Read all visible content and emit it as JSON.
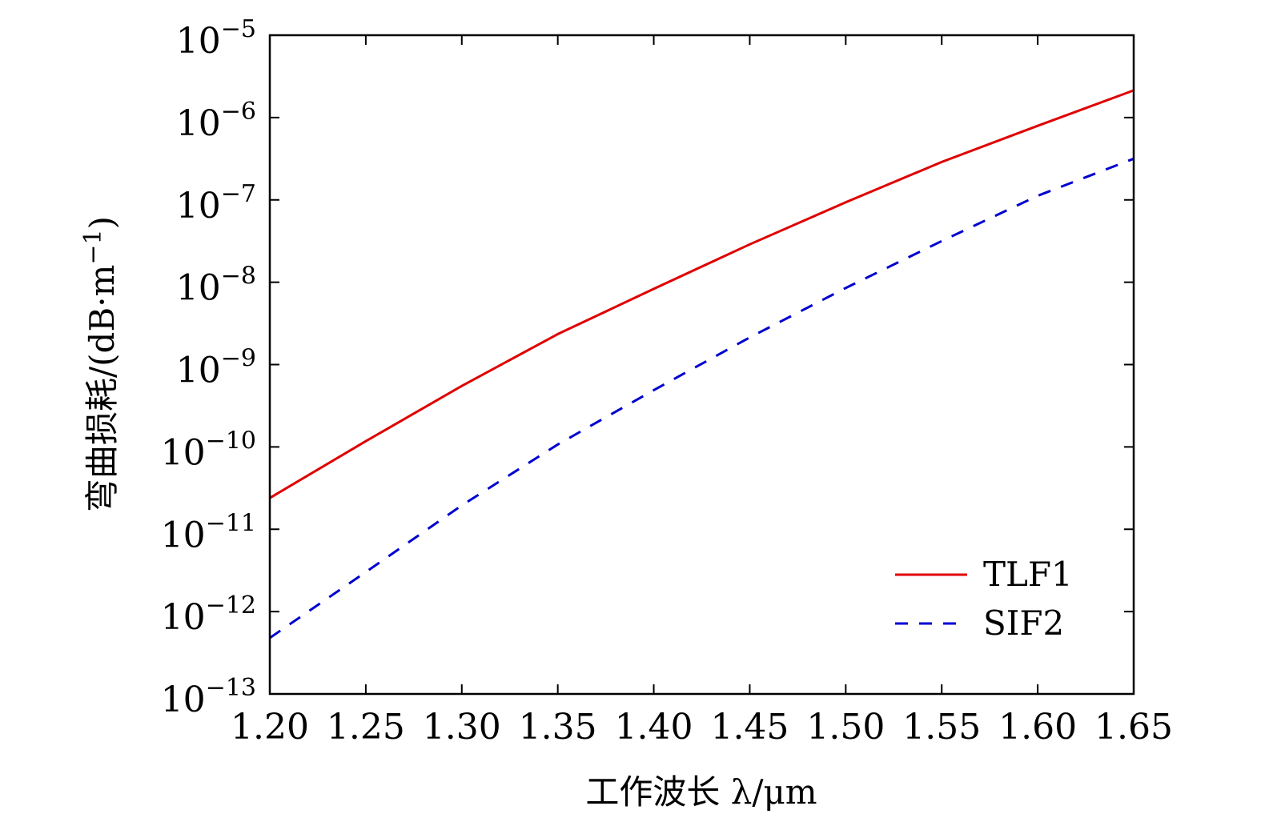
{
  "chart_data": {
    "type": "line",
    "title": "",
    "xlabel": "工作波长 λ/μm",
    "ylabel": "弯曲损耗/(dB·m⁻¹)",
    "xlim": [
      1.2,
      1.65
    ],
    "yscale": "log",
    "ylim": [
      1e-13,
      1e-05
    ],
    "grid": false,
    "legend_position": "bottom-right",
    "x_ticks": [
      {
        "value": 1.2,
        "label": "1.20"
      },
      {
        "value": 1.25,
        "label": "1.25"
      },
      {
        "value": 1.3,
        "label": "1.30"
      },
      {
        "value": 1.35,
        "label": "1.35"
      },
      {
        "value": 1.4,
        "label": "1.40"
      },
      {
        "value": 1.45,
        "label": "1.45"
      },
      {
        "value": 1.5,
        "label": "1.50"
      },
      {
        "value": 1.55,
        "label": "1.55"
      },
      {
        "value": 1.6,
        "label": "1.60"
      },
      {
        "value": 1.65,
        "label": "1.65"
      }
    ],
    "y_ticks": [
      {
        "exponent": -13,
        "base": "10",
        "exp_label": "−13"
      },
      {
        "exponent": -12,
        "base": "10",
        "exp_label": "−12"
      },
      {
        "exponent": -11,
        "base": "10",
        "exp_label": "−11"
      },
      {
        "exponent": -10,
        "base": "10",
        "exp_label": "−10"
      },
      {
        "exponent": -9,
        "base": "10",
        "exp_label": "−9"
      },
      {
        "exponent": -8,
        "base": "10",
        "exp_label": "−8"
      },
      {
        "exponent": -7,
        "base": "10",
        "exp_label": "−7"
      },
      {
        "exponent": -6,
        "base": "10",
        "exp_label": "−6"
      },
      {
        "exponent": -5,
        "base": "10",
        "exp_label": "−5"
      }
    ],
    "ylabel_parts": {
      "main": "弯曲损耗/(dB·m",
      "sup": "−1",
      "close": ")"
    },
    "x": [
      1.2,
      1.25,
      1.3,
      1.35,
      1.4,
      1.45,
      1.5,
      1.55,
      1.6,
      1.65
    ],
    "series": [
      {
        "name": "TLF1",
        "color": "#e00000",
        "dash": "solid",
        "log10_values": [
          -10.62,
          -9.93,
          -9.26,
          -8.63,
          -8.08,
          -7.54,
          -7.03,
          -6.54,
          -6.1,
          -5.67
        ]
      },
      {
        "name": "SIF2",
        "color": "#0000d0",
        "dash": "dashed",
        "log10_values": [
          -12.32,
          -11.52,
          -10.71,
          -9.97,
          -9.31,
          -8.67,
          -8.07,
          -7.5,
          -6.95,
          -6.5
        ]
      }
    ]
  }
}
